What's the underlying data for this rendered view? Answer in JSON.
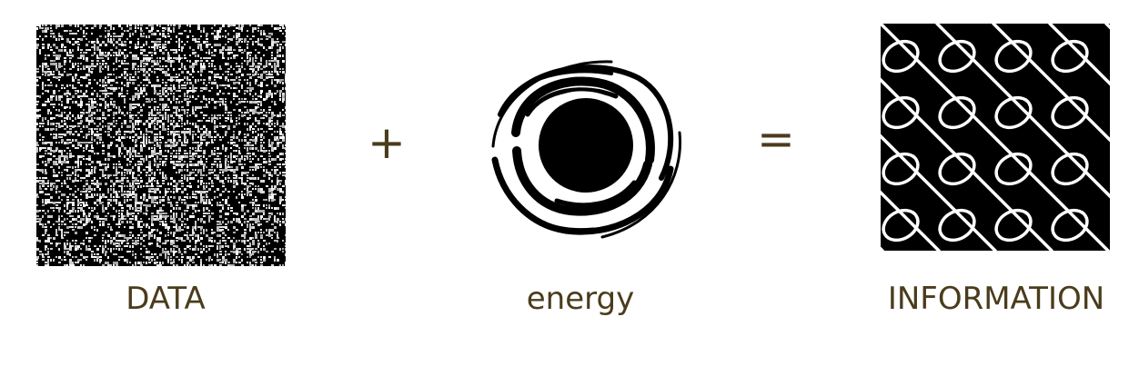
{
  "operators": {
    "plus": "+",
    "equals": "="
  },
  "labels": {
    "data": "DATA",
    "energy": "energy",
    "information": "INFORMATION"
  },
  "colors": {
    "text": "#4a3c1c",
    "ink": "#000000",
    "paper": "#ffffff"
  },
  "icons": {
    "data": "noise-texture-icon",
    "energy": "swirl-vortex-icon",
    "information": "ordered-loop-pattern-icon"
  }
}
